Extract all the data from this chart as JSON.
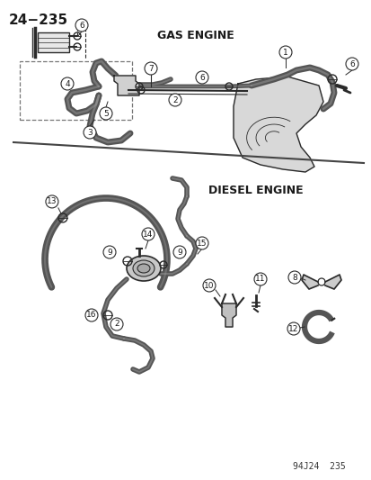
{
  "page_number": "24−235",
  "title_gas": "GAS ENGINE",
  "title_diesel": "DIESEL ENGINE",
  "footer": "94J24  235",
  "bg_color": "#ffffff",
  "lc": "#2a2a2a",
  "fc": "#1a1a1a"
}
